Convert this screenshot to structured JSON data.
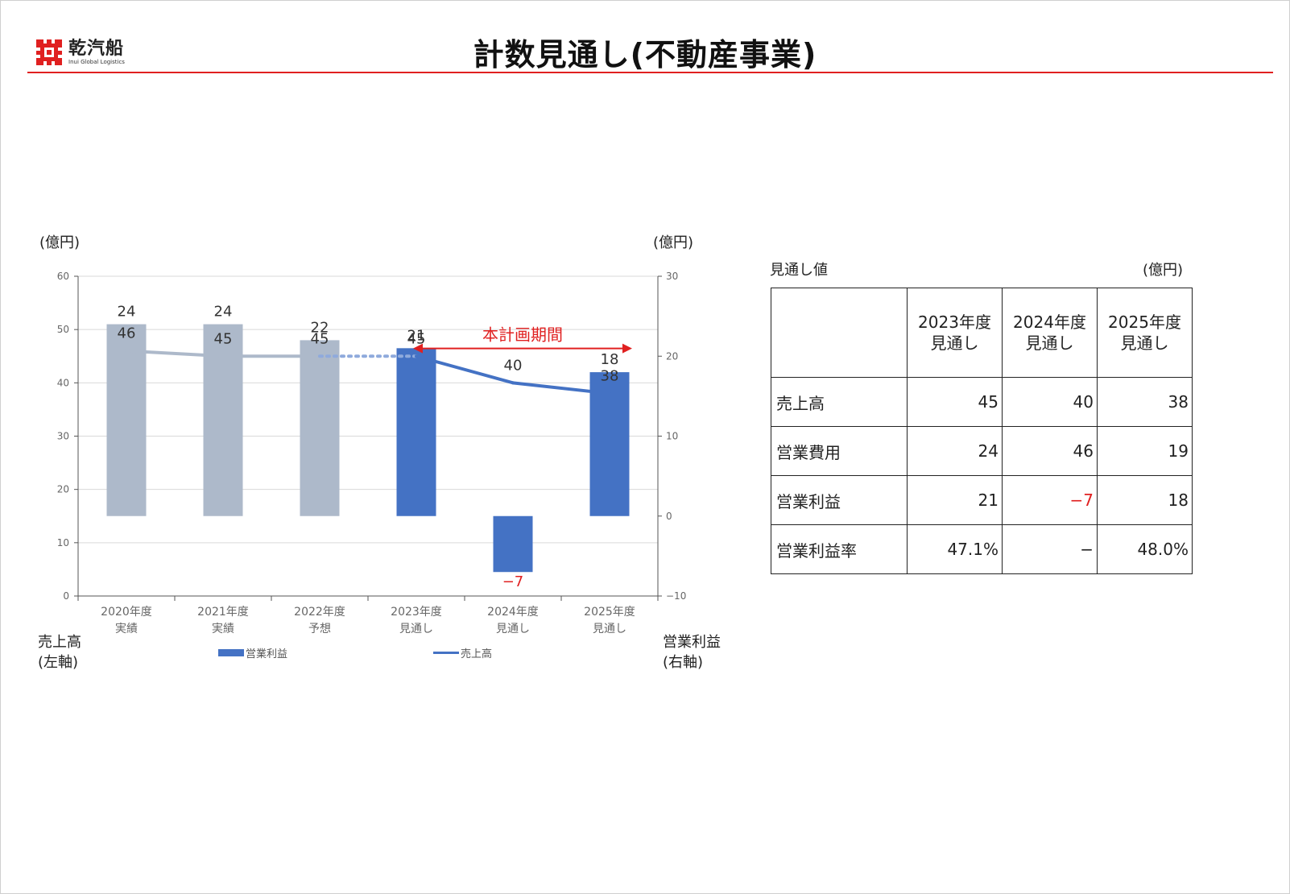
{
  "logo": {
    "name": "乾汽船",
    "subtitle": "Inui Global Logistics"
  },
  "title": "計数見通し(不動産事業)",
  "chart": {
    "unit_left": "(億円)",
    "unit_right": "(億円)",
    "plan_period_label": "本計画期間",
    "left_axis_note": [
      "売上高",
      "(左軸)"
    ],
    "right_axis_note": [
      "営業利益",
      "(右軸)"
    ],
    "legend": {
      "bar": "営業利益",
      "line": "売上高"
    }
  },
  "chart_data": {
    "type": "bar",
    "categories": [
      [
        "2020年度",
        "実績"
      ],
      [
        "2021年度",
        "実績"
      ],
      [
        "2022年度",
        "予想"
      ],
      [
        "2023年度",
        "見通し"
      ],
      [
        "2024年度",
        "見通し"
      ],
      [
        "2025年度",
        "見通し"
      ]
    ],
    "series": [
      {
        "name": "営業利益",
        "type": "bar",
        "axis": "right",
        "values": [
          24,
          24,
          22,
          21,
          -7,
          18
        ],
        "labels": [
          "24",
          "24",
          "22",
          "21",
          "−7",
          "18"
        ],
        "colors": [
          "#adb9ca",
          "#adb9ca",
          "#adb9ca",
          "#4472c4",
          "#4472c4",
          "#4472c4"
        ]
      },
      {
        "name": "売上高",
        "type": "line",
        "axis": "left",
        "values": [
          46,
          45,
          45,
          45,
          40,
          38
        ],
        "labels": [
          "46",
          "45",
          "45",
          "45",
          "40",
          "38"
        ],
        "segment_styles": [
          "solid-gray",
          "solid-gray",
          "dotted-blue",
          "solid-blue",
          "solid-blue"
        ]
      }
    ],
    "left_axis": {
      "min": 0,
      "max": 60,
      "ticks": [
        0,
        10,
        20,
        30,
        40,
        50,
        60
      ]
    },
    "right_axis": {
      "min": -10,
      "max": 30,
      "ticks": [
        -10,
        0,
        10,
        20,
        30
      ]
    },
    "plan_period": {
      "from": 3,
      "to": 5
    },
    "grid": true,
    "legend_position": "bottom"
  },
  "colors": {
    "actual": "#adb9ca",
    "forecast": "#4472c4",
    "accent_red": "#e02020"
  },
  "table": {
    "caption": "見通し値",
    "unit": "(億円)",
    "columns": [
      [
        "2023年度",
        "見通し"
      ],
      [
        "2024年度",
        "見通し"
      ],
      [
        "2025年度",
        "見通し"
      ]
    ],
    "rows": [
      {
        "label": "売上高",
        "values": [
          "45",
          "40",
          "38"
        ]
      },
      {
        "label": "営業費用",
        "values": [
          "24",
          "46",
          "19"
        ]
      },
      {
        "label": "営業利益",
        "values": [
          "21",
          "−7",
          "18"
        ]
      },
      {
        "label": "営業利益率",
        "values": [
          "47.1%",
          "−",
          "48.0%"
        ]
      }
    ]
  }
}
